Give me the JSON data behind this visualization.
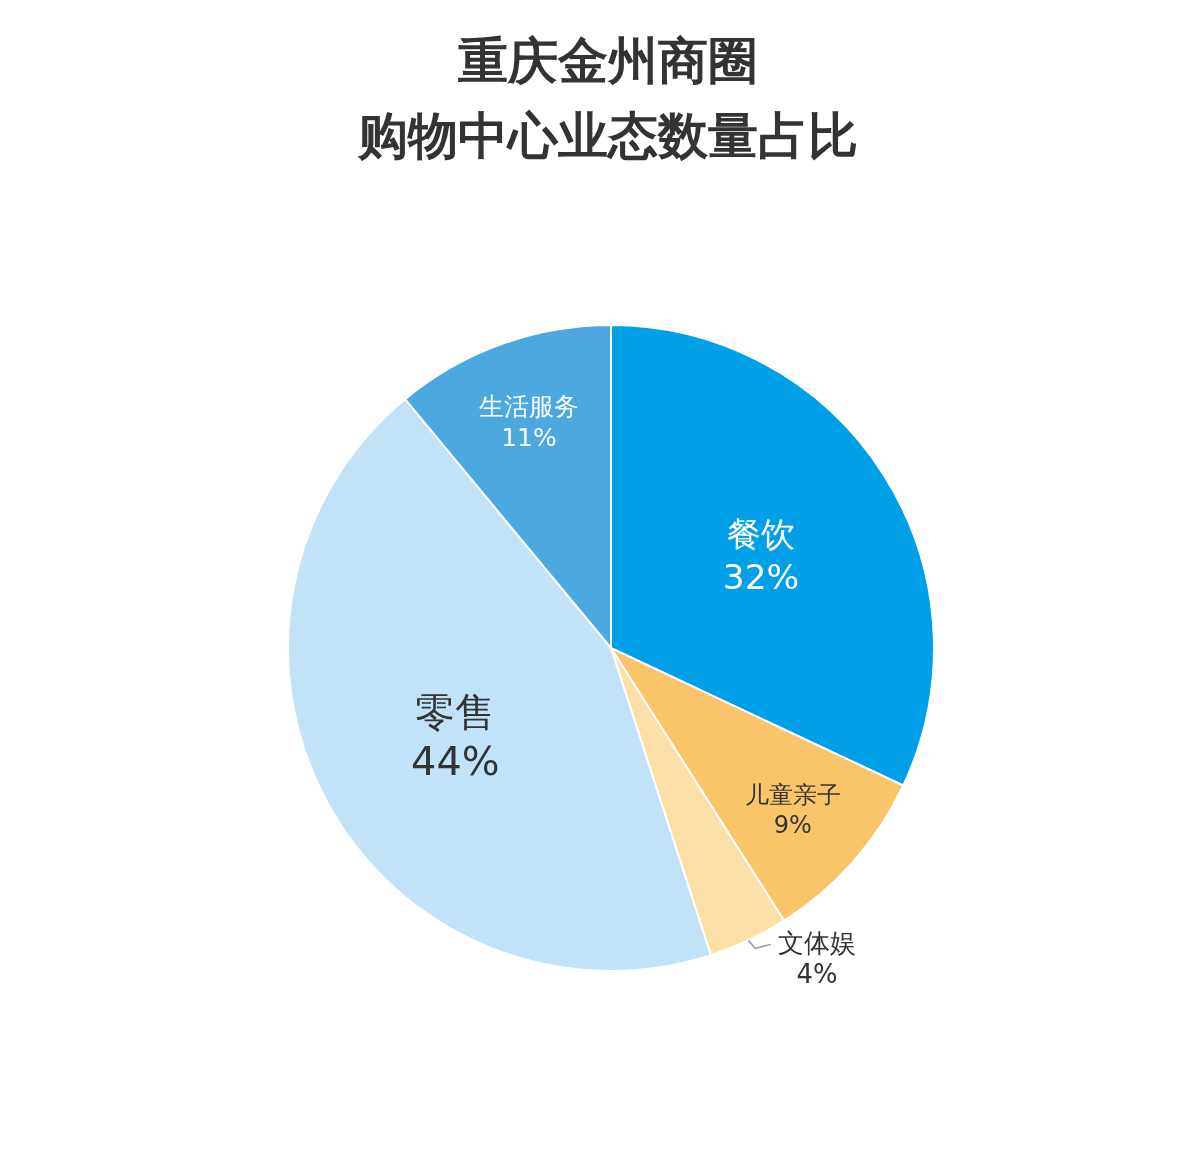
{
  "chart_data": {
    "type": "pie",
    "title": "重庆金州商圈",
    "subtitle": "购物中心业态数量占比",
    "categories": [
      "餐饮",
      "儿童亲子",
      "文体娱",
      "零售",
      "生活服务"
    ],
    "values": [
      32,
      9,
      4,
      44,
      11
    ],
    "value_labels": [
      "32%",
      "9%",
      "4%",
      "44%",
      "11%"
    ],
    "colors": [
      "#00a0e9",
      "#f9c46a",
      "#fde0a8",
      "#c2e2f7",
      "#4da8e0"
    ]
  }
}
